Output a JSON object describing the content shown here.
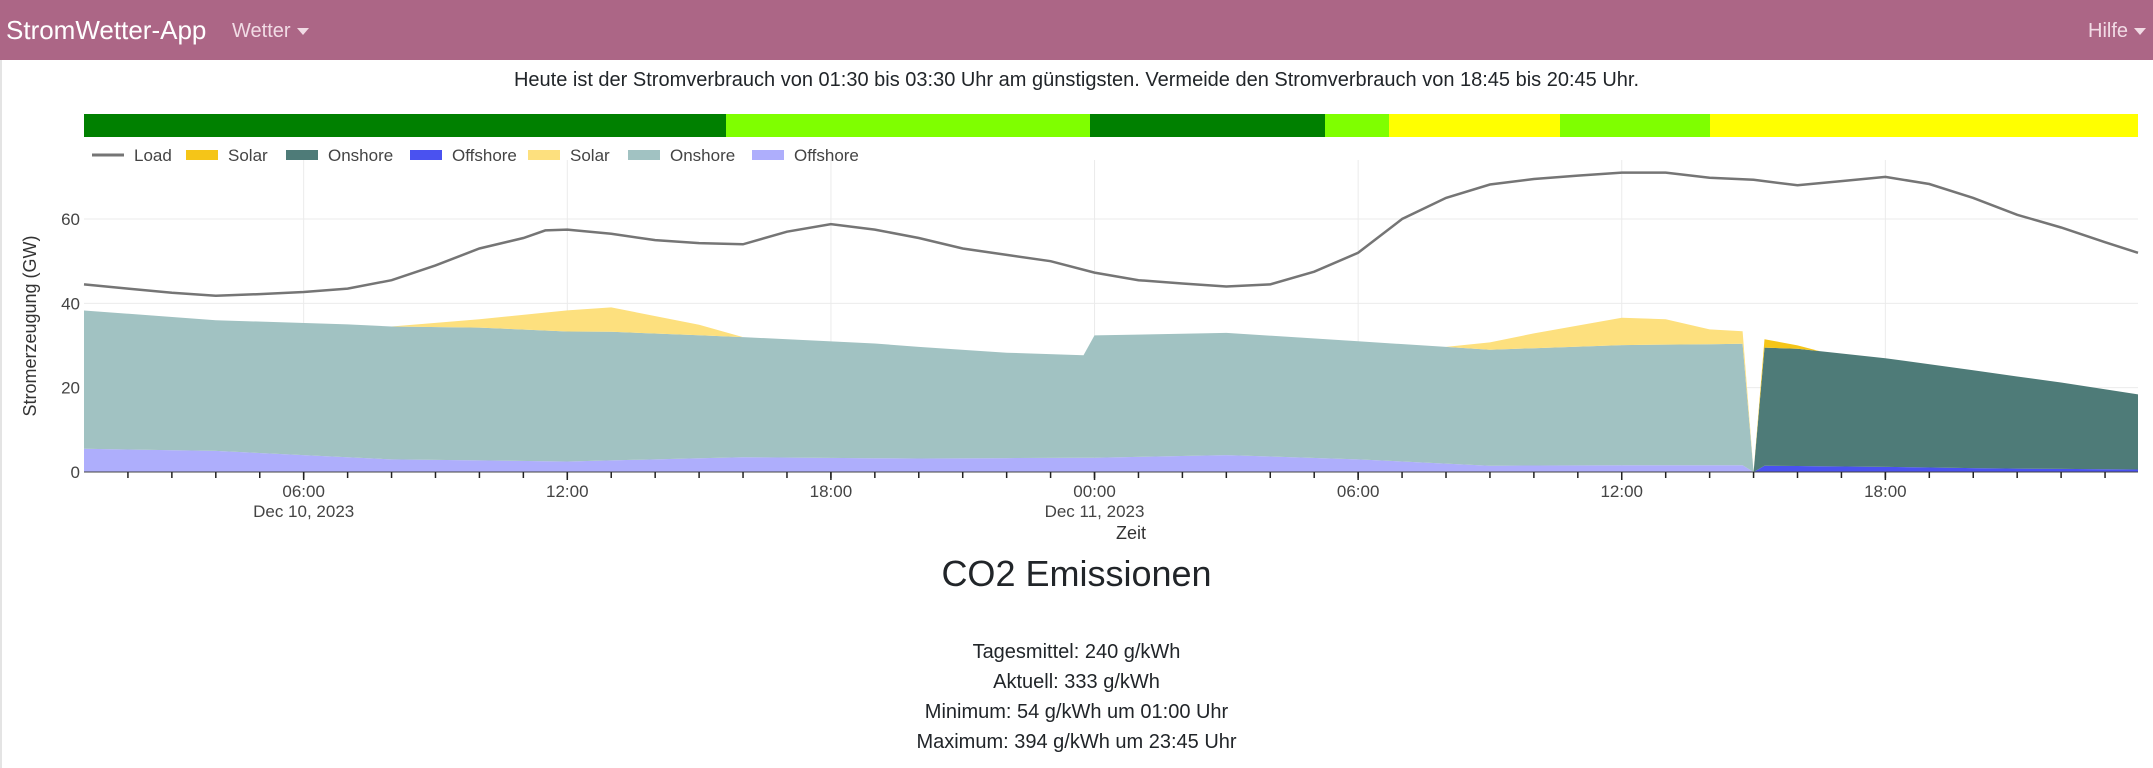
{
  "navbar": {
    "brand": "StromWetter-App",
    "menu_wetter": "Wetter",
    "menu_hilfe": "Hilfe"
  },
  "recommendation": "Heute ist der Stromverbrauch von 01:30 bis 03:30 Uhr am günstigsten. Vermeide den Stromverbrauch von 18:45 bis 20:45 Uhr.",
  "schedule_bar": {
    "colors": {
      "best": "#008000",
      "good": "#7fff00",
      "bad": "#ffff00"
    },
    "segments": [
      {
        "from": 0,
        "to": 7.5,
        "level": "best"
      },
      {
        "from": 7.5,
        "to": 11.75,
        "level": "good"
      },
      {
        "from": 11.75,
        "to": 14.5,
        "level": "best"
      },
      {
        "from": 14.5,
        "to": 15.25,
        "level": "good"
      },
      {
        "from": 15.25,
        "to": 17.25,
        "level": "bad"
      },
      {
        "from": 17.25,
        "to": 19,
        "level": "good"
      },
      {
        "from": 19,
        "to": 24,
        "level": "bad"
      }
    ]
  },
  "chart_data": {
    "type": "area",
    "xlabel": "Zeit",
    "ylabel": "Stromerzeugung (GW)",
    "ylim": [
      0,
      74
    ],
    "xlim": [
      "2023-12-10 01:00",
      "2023-12-11 23:45"
    ],
    "y_ticks": [
      "0",
      "20",
      "40",
      "60"
    ],
    "x_ticks": [
      {
        "t": "2023-12-10 06:00",
        "label": "06:00",
        "sublabel": "Dec 10, 2023"
      },
      {
        "t": "2023-12-10 12:00",
        "label": "12:00",
        "sublabel": ""
      },
      {
        "t": "2023-12-10 18:00",
        "label": "18:00",
        "sublabel": ""
      },
      {
        "t": "2023-12-11 00:00",
        "label": "00:00",
        "sublabel": "Dec 11, 2023"
      },
      {
        "t": "2023-12-11 06:00",
        "label": "06:00",
        "sublabel": ""
      },
      {
        "t": "2023-12-11 12:00",
        "label": "12:00",
        "sublabel": ""
      },
      {
        "t": "2023-12-11 18:00",
        "label": "18:00",
        "sublabel": ""
      }
    ],
    "grid": true,
    "legend_position": "top-left",
    "legend": [
      {
        "name": "Load",
        "kind": "line",
        "color": "#757575"
      },
      {
        "name": "Solar",
        "kind": "fill",
        "color": "#f5c518"
      },
      {
        "name": "Onshore",
        "kind": "fill",
        "color": "#4e7b78"
      },
      {
        "name": "Offshore",
        "kind": "fill",
        "color": "#4a52f0"
      },
      {
        "name": "Solar",
        "kind": "fill",
        "color": "#fde07e"
      },
      {
        "name": "Onshore",
        "kind": "fill",
        "color": "#a1c2c2"
      },
      {
        "name": "Offshore",
        "kind": "fill",
        "color": "#aeaefc"
      }
    ],
    "load": {
      "name": "Load",
      "color": "#757575",
      "points": [
        [
          "2023-12-10 01:00",
          44.5
        ],
        [
          "2023-12-10 02:00",
          43.5
        ],
        [
          "2023-12-10 03:00",
          42.5
        ],
        [
          "2023-12-10 04:00",
          41.8
        ],
        [
          "2023-12-10 05:00",
          42.2
        ],
        [
          "2023-12-10 06:00",
          42.7
        ],
        [
          "2023-12-10 07:00",
          43.5
        ],
        [
          "2023-12-10 08:00",
          45.5
        ],
        [
          "2023-12-10 09:00",
          49
        ],
        [
          "2023-12-10 10:00",
          53
        ],
        [
          "2023-12-10 11:00",
          55.5
        ],
        [
          "2023-12-10 11:30",
          57.3
        ],
        [
          "2023-12-10 12:00",
          57.5
        ],
        [
          "2023-12-10 13:00",
          56.5
        ],
        [
          "2023-12-10 14:00",
          55
        ],
        [
          "2023-12-10 15:00",
          54.3
        ],
        [
          "2023-12-10 16:00",
          54
        ],
        [
          "2023-12-10 17:00",
          57
        ],
        [
          "2023-12-10 18:00",
          58.8
        ],
        [
          "2023-12-10 19:00",
          57.5
        ],
        [
          "2023-12-10 20:00",
          55.5
        ],
        [
          "2023-12-10 21:00",
          53
        ],
        [
          "2023-12-10 22:00",
          51.5
        ],
        [
          "2023-12-10 23:00",
          50
        ],
        [
          "2023-12-11 00:00",
          47.3
        ],
        [
          "2023-12-11 01:00",
          45.5
        ],
        [
          "2023-12-11 02:00",
          44.7
        ],
        [
          "2023-12-11 03:00",
          44
        ],
        [
          "2023-12-11 04:00",
          44.5
        ],
        [
          "2023-12-11 05:00",
          47.5
        ],
        [
          "2023-12-11 06:00",
          52
        ],
        [
          "2023-12-11 07:00",
          60
        ],
        [
          "2023-12-11 08:00",
          65
        ],
        [
          "2023-12-11 09:00",
          68.2
        ],
        [
          "2023-12-11 10:00",
          69.5
        ],
        [
          "2023-12-11 11:00",
          70.3
        ],
        [
          "2023-12-11 12:00",
          71
        ],
        [
          "2023-12-11 13:00",
          71
        ],
        [
          "2023-12-11 14:00",
          69.8
        ],
        [
          "2023-12-11 15:00",
          69.3
        ],
        [
          "2023-12-11 16:00",
          68
        ],
        [
          "2023-12-11 17:00",
          69
        ],
        [
          "2023-12-11 18:00",
          70
        ],
        [
          "2023-12-11 19:00",
          68.3
        ],
        [
          "2023-12-11 20:00",
          65
        ],
        [
          "2023-12-11 21:00",
          61
        ],
        [
          "2023-12-11 22:00",
          58
        ],
        [
          "2023-12-11 23:00",
          54.5
        ],
        [
          "2023-12-11 23:45",
          52
        ]
      ]
    },
    "stacks": [
      {
        "name": "Offshore",
        "color": "#aeaefc",
        "points": [
          [
            "2023-12-10 01:00",
            5.5
          ],
          [
            "2023-12-10 04:00",
            5
          ],
          [
            "2023-12-10 08:00",
            3
          ],
          [
            "2023-12-10 12:00",
            2.5
          ],
          [
            "2023-12-10 16:00",
            3.5
          ],
          [
            "2023-12-10 20:00",
            3.2
          ],
          [
            "2023-12-11 00:00",
            3.4
          ],
          [
            "2023-12-11 03:00",
            4
          ],
          [
            "2023-12-11 06:00",
            3
          ],
          [
            "2023-12-11 09:00",
            1.5
          ],
          [
            "2023-12-11 12:00",
            1.6
          ],
          [
            "2023-12-11 14:45",
            1.6
          ],
          [
            "2023-12-11 15:00",
            0
          ],
          [
            "2023-12-11 23:45",
            0
          ]
        ]
      },
      {
        "name": "Onshore",
        "color": "#a1c2c2",
        "points": [
          [
            "2023-12-10 01:00",
            32.8
          ],
          [
            "2023-12-10 04:00",
            31
          ],
          [
            "2023-12-10 07:00",
            31.5
          ],
          [
            "2023-12-10 10:00",
            31.5
          ],
          [
            "2023-12-10 13:00",
            30.5
          ],
          [
            "2023-12-10 16:00",
            28.5
          ],
          [
            "2023-12-10 19:00",
            27.2
          ],
          [
            "2023-12-10 22:00",
            25
          ],
          [
            "2023-12-10 23:45",
            24.3
          ],
          [
            "2023-12-11 00:00",
            29
          ],
          [
            "2023-12-11 03:00",
            29
          ],
          [
            "2023-12-11 06:00",
            28
          ],
          [
            "2023-12-11 09:00",
            27.5
          ],
          [
            "2023-12-11 12:00",
            28.5
          ],
          [
            "2023-12-11 14:45",
            28.8
          ],
          [
            "2023-12-11 15:00",
            0
          ],
          [
            "2023-12-11 23:45",
            0
          ]
        ]
      },
      {
        "name": "Solar",
        "color": "#fde07e",
        "points": [
          [
            "2023-12-10 01:00",
            0
          ],
          [
            "2023-12-10 08:00",
            0
          ],
          [
            "2023-12-10 10:00",
            2
          ],
          [
            "2023-12-10 12:00",
            5
          ],
          [
            "2023-12-10 13:00",
            5.8
          ],
          [
            "2023-12-10 15:00",
            2.5
          ],
          [
            "2023-12-10 16:00",
            0
          ],
          [
            "2023-12-11 08:00",
            0
          ],
          [
            "2023-12-11 10:00",
            3.5
          ],
          [
            "2023-12-11 12:00",
            6.5
          ],
          [
            "2023-12-11 13:00",
            6
          ],
          [
            "2023-12-11 14:00",
            3.5
          ],
          [
            "2023-12-11 14:45",
            3
          ],
          [
            "2023-12-11 15:00",
            0
          ],
          [
            "2023-12-11 23:45",
            0
          ]
        ]
      },
      {
        "name": "Offshore",
        "color": "#4a52f0",
        "points": [
          [
            "2023-12-10 01:00",
            0
          ],
          [
            "2023-12-11 15:00",
            0
          ],
          [
            "2023-12-11 15:15",
            1.5
          ],
          [
            "2023-12-11 18:00",
            1.2
          ],
          [
            "2023-12-11 21:00",
            0.8
          ],
          [
            "2023-12-11 23:45",
            0.6
          ]
        ]
      },
      {
        "name": "Onshore",
        "color": "#4e7b78",
        "points": [
          [
            "2023-12-10 01:00",
            0
          ],
          [
            "2023-12-11 15:00",
            0
          ],
          [
            "2023-12-11 15:15",
            28
          ],
          [
            "2023-12-11 16:00",
            27.8
          ],
          [
            "2023-12-11 18:00",
            25.8
          ],
          [
            "2023-12-11 20:00",
            23.2
          ],
          [
            "2023-12-11 22:00",
            20.5
          ],
          [
            "2023-12-11 23:45",
            17.8
          ]
        ]
      },
      {
        "name": "Solar",
        "color": "#f5c518",
        "points": [
          [
            "2023-12-10 01:00",
            0
          ],
          [
            "2023-12-11 15:00",
            0
          ],
          [
            "2023-12-11 15:15",
            2
          ],
          [
            "2023-12-11 16:30",
            0
          ],
          [
            "2023-12-11 23:45",
            0
          ]
        ]
      }
    ]
  },
  "co2": {
    "title": "CO2 Emissionen",
    "mean": "Tagesmittel: 240 g/kWh",
    "current": "Aktuell: 333 g/kWh",
    "minimum": "Minimum: 54 g/kWh um 01:00 Uhr",
    "maximum": "Maximum: 394 g/kWh um 23:45 Uhr"
  }
}
